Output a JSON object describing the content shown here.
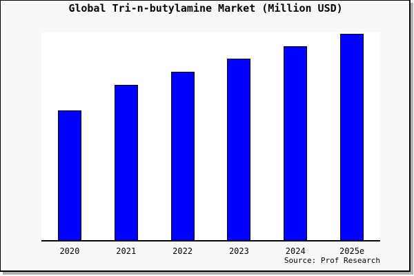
{
  "chart_data": {
    "type": "bar",
    "title": "Global Tri-n-butylamine Market (Million USD)",
    "categories": [
      "2020",
      "2021",
      "2022",
      "2023",
      "2024",
      "2025e"
    ],
    "values_pct_of_max": [
      62.9,
      75.3,
      81.6,
      88.0,
      94.0,
      100.0
    ],
    "unit": "Million USD",
    "xlabel": "",
    "ylabel": "",
    "y_axis_ticks": "none",
    "gridlines": false,
    "legend": "none",
    "source_label": "Source: Prof Research",
    "colors": {
      "bar_fill": "#0000ff",
      "bar_border": "#000000",
      "axis": "#000000",
      "plot_bg": "#ffffff",
      "frame_bg": "#f8f8f8",
      "frame_border": "#000000",
      "frame_shadow": "#b0b0b0",
      "text": "#000000"
    }
  }
}
